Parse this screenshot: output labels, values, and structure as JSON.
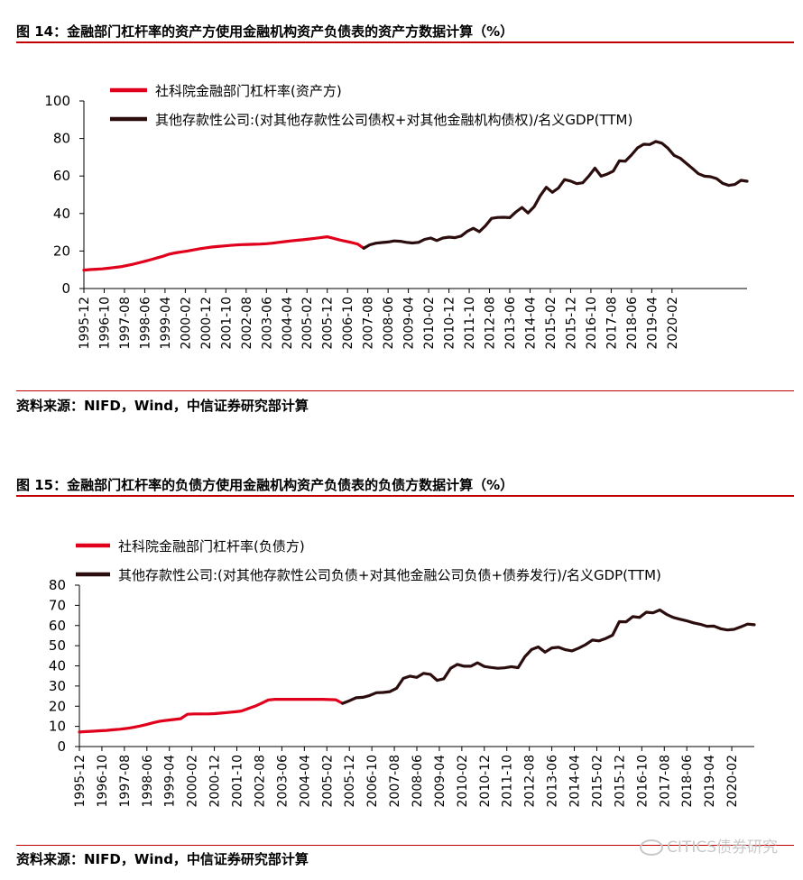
{
  "figures": [
    {
      "title": "图 14：金融部门杠杆率的资产方使用金融机构资产负债表的资产方数据计算（%）",
      "source": "资料来源：NIFD，Wind，中信证券研究部计算"
    },
    {
      "title": "图 15：金融部门杠杆率的负债方使用金融机构资产负债表的负债方数据计算（%）",
      "source": "资料来源：NIFD，Wind，中信证券研究部计算"
    }
  ],
  "watermark": "CITICS债券研究",
  "chart_data": [
    {
      "type": "line",
      "title": "",
      "xlabel": "",
      "ylabel": "",
      "ylim": [
        0,
        100
      ],
      "yticks": [
        0,
        20,
        40,
        60,
        80,
        100
      ],
      "xticks": [
        "1995-12",
        "1996-10",
        "1997-08",
        "1998-06",
        "1999-04",
        "2000-02",
        "2000-12",
        "2001-10",
        "2002-08",
        "2003-06",
        "2004-04",
        "2005-02",
        "2005-12",
        "2006-10",
        "2007-08",
        "2008-06",
        "2009-04",
        "2010-02",
        "2010-12",
        "2011-10",
        "2012-08",
        "2013-06",
        "2014-04",
        "2015-02",
        "2015-12",
        "2016-10",
        "2017-08",
        "2018-06",
        "2019-04",
        "2020-02"
      ],
      "x_start": "1995-12",
      "x_step_months": 3,
      "grid": false,
      "legend_position": "top-left",
      "series": [
        {
          "name": "社科院金融部门杠杆率(资产方)",
          "color": "#e0001b",
          "start_index": 0,
          "values": [
            9.8,
            10.1,
            10.3,
            10.5,
            10.8,
            11.2,
            11.6,
            12.2,
            12.9,
            13.7,
            14.5,
            15.4,
            16.3,
            17.2,
            18.3,
            19.0,
            19.5,
            20.0,
            20.6,
            21.2,
            21.7,
            22.1,
            22.4,
            22.7,
            23.0,
            23.2,
            23.4,
            23.5,
            23.6,
            23.7,
            23.9,
            24.2,
            24.6,
            25.0,
            25.4,
            25.7,
            26.0,
            26.4,
            26.8,
            27.2,
            27.6,
            26.8,
            25.9,
            25.2,
            24.5,
            23.7,
            21.5
          ]
        },
        {
          "name": "其他存款性公司:(对其他存款性公司债权+对其他金融机构债权)/名义GDP(TTM)",
          "color": "#2b0d0d",
          "start_index": 46,
          "values": [
            21.5,
            23.3,
            24.2,
            24.5,
            24.8,
            25.4,
            25.2,
            24.6,
            24.3,
            24.6,
            26.2,
            26.9,
            25.6,
            26.9,
            27.4,
            27.1,
            28.0,
            30.5,
            32.1,
            30.3,
            33.4,
            37.4,
            37.9,
            38.0,
            37.8,
            40.8,
            43.2,
            40.3,
            43.6,
            49.4,
            54.0,
            51.3,
            53.6,
            58.1,
            57.3,
            55.9,
            56.4,
            60.0,
            64.2,
            59.9,
            61.0,
            62.6,
            68.1,
            67.9,
            71.2,
            75.0,
            76.9,
            76.8,
            78.4,
            77.5,
            74.8,
            71.0,
            69.5,
            66.8,
            64.1,
            61.2,
            59.9,
            59.6,
            58.6,
            56.1,
            55.0,
            55.5,
            57.7,
            57.2
          ]
        }
      ]
    },
    {
      "type": "line",
      "title": "",
      "xlabel": "",
      "ylabel": "",
      "ylim": [
        0,
        80
      ],
      "yticks": [
        0,
        10,
        20,
        30,
        40,
        50,
        60,
        70,
        80
      ],
      "xticks": [
        "1995-12",
        "1996-10",
        "1997-08",
        "1998-06",
        "1999-04",
        "2000-02",
        "2000-12",
        "2001-10",
        "2002-08",
        "2003-06",
        "2004-04",
        "2005-02",
        "2005-12",
        "2006-10",
        "2007-08",
        "2008-06",
        "2009-04",
        "2010-02",
        "2010-12",
        "2011-10",
        "2012-08",
        "2013-06",
        "2014-04",
        "2015-02",
        "2015-12",
        "2016-10",
        "2017-08",
        "2018-06",
        "2019-04",
        "2020-02"
      ],
      "x_start": "1995-12",
      "x_step_months": 3,
      "grid": false,
      "legend_position": "top-left",
      "series": [
        {
          "name": "社科院金融部门杠杆率(负债方)",
          "color": "#e0001b",
          "start_index": 0,
          "values": [
            7.2,
            7.4,
            7.6,
            7.8,
            8.0,
            8.3,
            8.6,
            9.0,
            9.5,
            10.2,
            11.0,
            11.9,
            12.6,
            13.0,
            13.4,
            13.8,
            16.0,
            16.2,
            16.2,
            16.2,
            16.3,
            16.6,
            16.9,
            17.2,
            17.6,
            18.8,
            20.0,
            21.5,
            23.1,
            23.4,
            23.4,
            23.4,
            23.4,
            23.4,
            23.4,
            23.4,
            23.4,
            23.3,
            23.2,
            21.4
          ]
        },
        {
          "name": "其他存款性公司:(对其他存款性公司负债+对其他金融公司负债+债券发行)/名义GDP(TTM)",
          "color": "#2b0d0d",
          "start_index": 39,
          "values": [
            21.4,
            22.7,
            24.2,
            24.4,
            25.3,
            26.7,
            26.8,
            27.2,
            28.9,
            33.8,
            34.9,
            34.3,
            36.3,
            35.8,
            32.8,
            33.6,
            38.8,
            40.7,
            39.8,
            39.8,
            41.5,
            39.7,
            39.2,
            38.8,
            39.0,
            39.6,
            39.1,
            44.5,
            48.1,
            49.4,
            46.8,
            48.9,
            49.2,
            48.0,
            47.4,
            48.8,
            50.5,
            52.8,
            52.4,
            53.6,
            55.2,
            61.9,
            61.8,
            64.4,
            64.0,
            66.6,
            66.3,
            67.7,
            65.5,
            64.0,
            63.1,
            62.3,
            61.3,
            60.6,
            59.6,
            59.7,
            58.4,
            57.8,
            58.1,
            59.3,
            60.7,
            60.4
          ]
        }
      ]
    }
  ]
}
